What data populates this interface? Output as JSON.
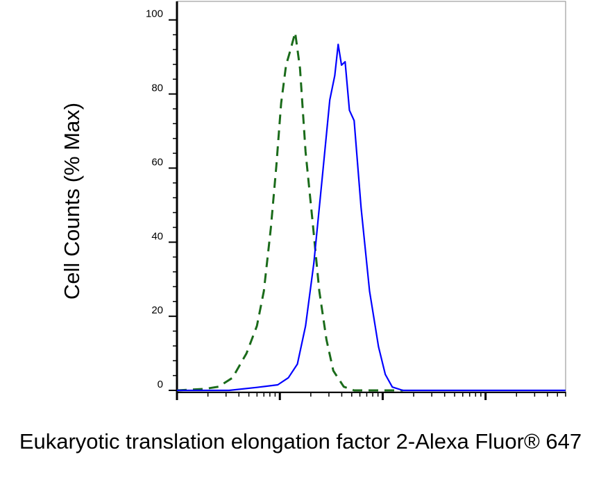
{
  "chart_data": {
    "type": "line",
    "x_label": "Eukaryotic translation elongation factor 2-Alexa Fluor® 647",
    "y_label": "Cell Counts (% Max)",
    "x_scale": "log",
    "xlim": [
      1,
      6000
    ],
    "xticks": [
      1,
      10,
      100,
      1000
    ],
    "ylim": [
      0,
      105
    ],
    "yticks": [
      0,
      20,
      40,
      60,
      80,
      100
    ],
    "series": [
      {
        "color": "#1a6b1a",
        "dash": true,
        "x": [
          1,
          1.86,
          2.54,
          3.47,
          4.74,
          5.99,
          6.99,
          8.17,
          9.25,
          10.3,
          11.5,
          12.6,
          14.1,
          15.7,
          17.8,
          20.8,
          24.2,
          28.4,
          33.1,
          41.8,
          52.7,
          157
        ],
        "values": [
          0,
          0.4,
          1,
          3.4,
          10,
          17.4,
          26.8,
          43.7,
          60.6,
          77.5,
          87.8,
          91.6,
          96.6,
          86.9,
          64.4,
          45.6,
          26.8,
          13.7,
          5.3,
          1,
          0,
          0
        ]
      },
      {
        "color": "#0000ff",
        "dash": false,
        "x": [
          1,
          3.21,
          5.99,
          9.54,
          12.1,
          14.8,
          17.8,
          21.4,
          26.1,
          30.6,
          34.2,
          36.9,
          39.8,
          43.1,
          47.5,
          52.8,
          61.6,
          74.5,
          91.1,
          106,
          124,
          157,
          6000
        ],
        "values": [
          0,
          0,
          0.8,
          1.5,
          3.4,
          7.1,
          17.4,
          34.3,
          58.7,
          78.4,
          85,
          93.4,
          87.8,
          88.7,
          75.6,
          72.8,
          49.3,
          26.8,
          11.8,
          4.3,
          0.9,
          0,
          0
        ]
      }
    ]
  }
}
